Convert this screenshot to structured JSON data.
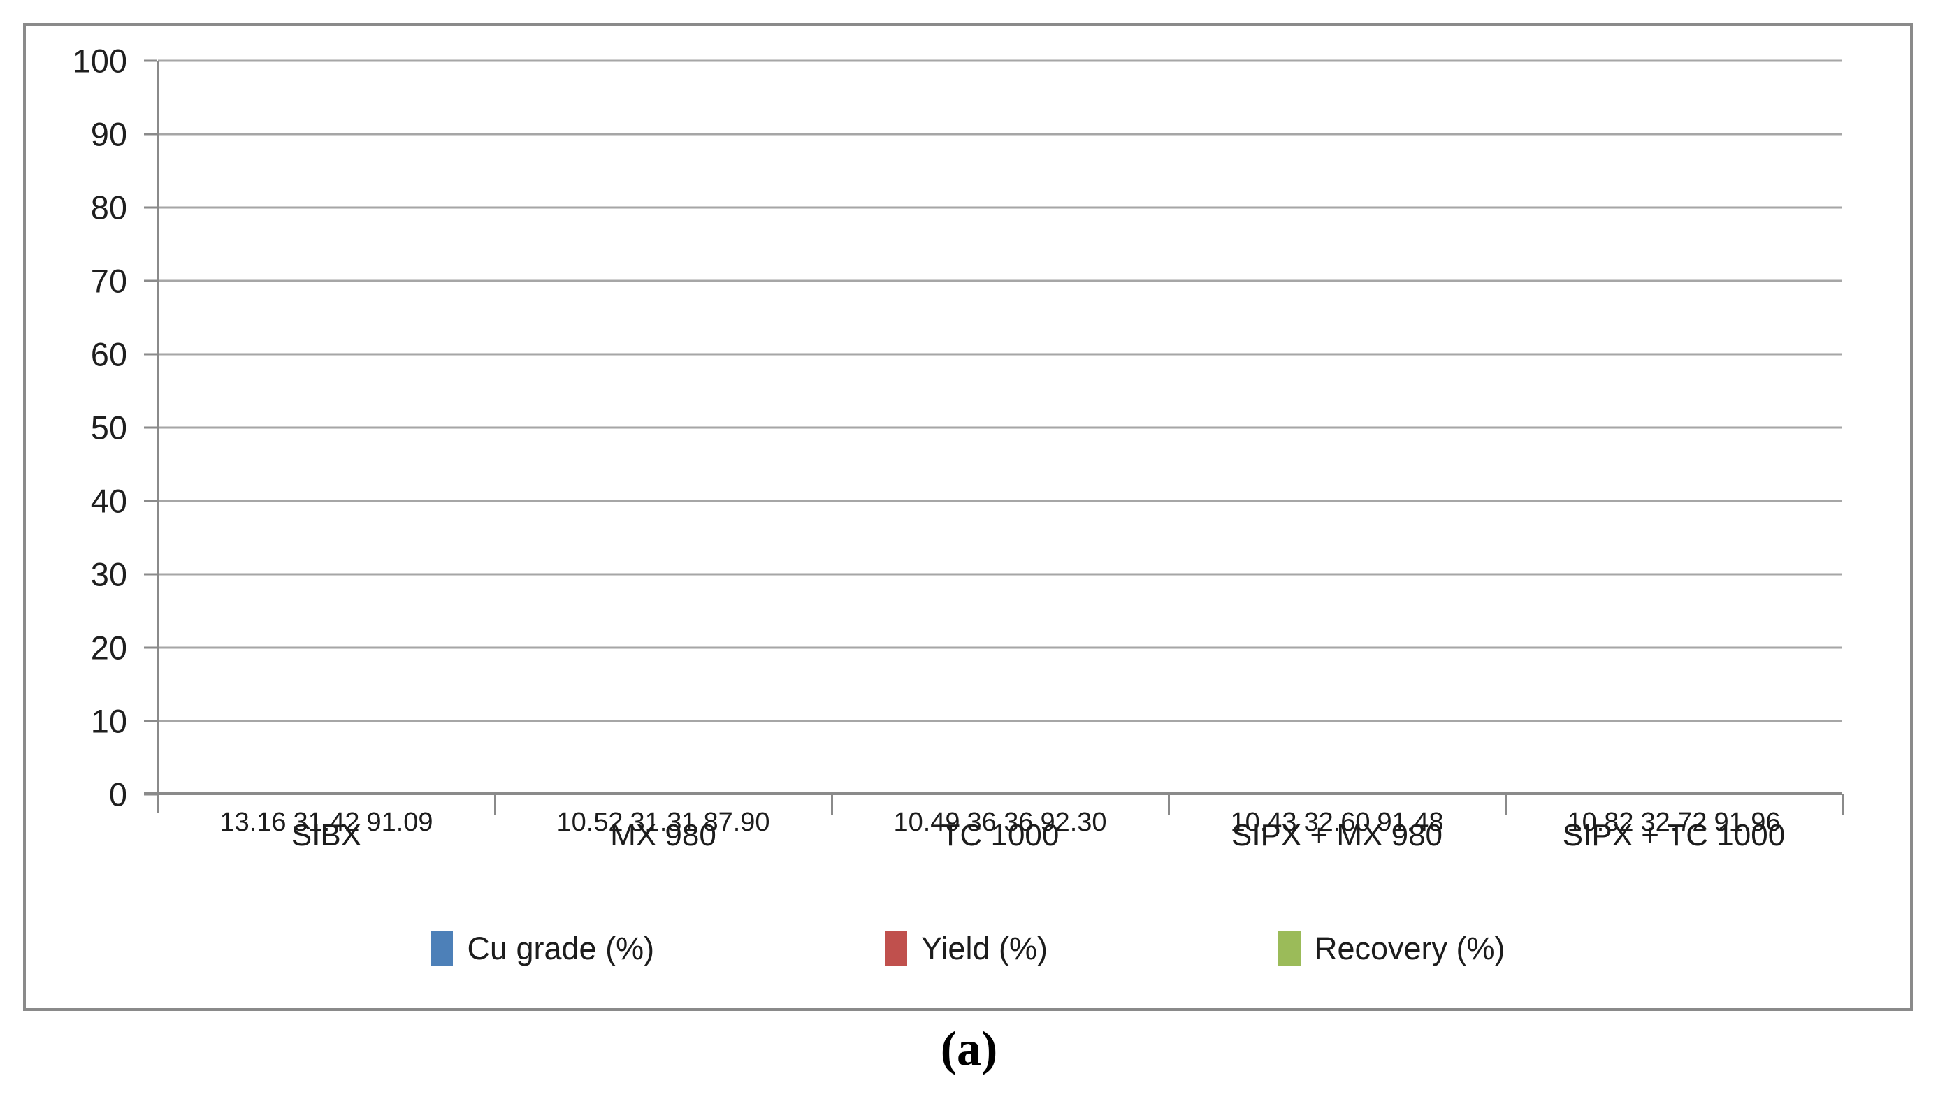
{
  "caption": "(a)",
  "style": {
    "gridline_color": "#a6a6a6",
    "axis_color": "#8a8a8a",
    "frame_color": "#8a8a8a",
    "text_color": "#1c1c1c",
    "background": "#ffffff"
  },
  "chart_data": {
    "type": "bar",
    "title": "",
    "xlabel": "",
    "ylabel": "",
    "ylim": [
      0,
      100
    ],
    "ytick_step": 10,
    "yticks": [
      0,
      10,
      20,
      30,
      40,
      50,
      60,
      70,
      80,
      90,
      100
    ],
    "grid": true,
    "legend_position": "bottom",
    "data_labels": "inside-end",
    "categories": [
      "SIBX",
      "MX 980",
      "TC 1000",
      "SIPX + MX 980",
      "SIPX + TC 1000"
    ],
    "series": [
      {
        "name": "Cu grade (%)",
        "color": "#4d80b8",
        "values": [
          13.16,
          10.52,
          10.49,
          10.43,
          10.82
        ],
        "labels": [
          "13.16",
          "10.52",
          "10.49",
          "10.43",
          "10.82"
        ]
      },
      {
        "name": "Yield (%)",
        "color": "#c0504d",
        "values": [
          31.42,
          31.31,
          36.36,
          32.6,
          32.72
        ],
        "labels": [
          "31.42",
          "31.31",
          "36.36",
          "32.60",
          "32.72"
        ]
      },
      {
        "name": "Recovery (%)",
        "color": "#9bbb59",
        "values": [
          91.09,
          87.9,
          92.3,
          91.48,
          91.96
        ],
        "labels": [
          "91.09",
          "87.90",
          "92.30",
          "91.48",
          "91.96"
        ]
      }
    ]
  }
}
